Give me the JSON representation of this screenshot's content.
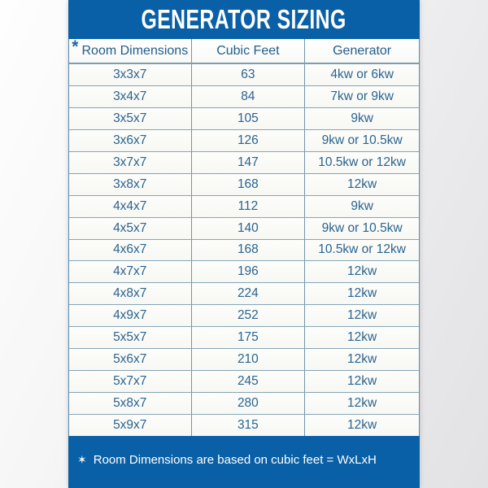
{
  "title": "GENERATOR SIZING",
  "table": {
    "header": {
      "asterisk": "*",
      "columns": [
        "Room Dimensions",
        "Cubic Feet",
        "Generator"
      ]
    },
    "rows": [
      [
        "3x3x7",
        "63",
        "4kw or 6kw"
      ],
      [
        "3x4x7",
        "84",
        "7kw or 9kw"
      ],
      [
        "3x5x7",
        "105",
        "9kw"
      ],
      [
        "3x6x7",
        "126",
        "9kw or 10.5kw"
      ],
      [
        "3x7x7",
        "147",
        "10.5kw or 12kw"
      ],
      [
        "3x8x7",
        "168",
        "12kw"
      ],
      [
        "4x4x7",
        "112",
        "9kw"
      ],
      [
        "4x5x7",
        "140",
        "9kw or 10.5kw"
      ],
      [
        "4x6x7",
        "168",
        "10.5kw or 12kw"
      ],
      [
        "4x7x7",
        "196",
        "12kw"
      ],
      [
        "4x8x7",
        "224",
        "12kw"
      ],
      [
        "4x9x7",
        "252",
        "12kw"
      ],
      [
        "5x5x7",
        "175",
        "12kw"
      ],
      [
        "5x6x7",
        "210",
        "12kw"
      ],
      [
        "5x7x7",
        "245",
        "12kw"
      ],
      [
        "5x8x7",
        "280",
        "12kw"
      ],
      [
        "5x9x7",
        "315",
        "12kw"
      ]
    ]
  },
  "footnote": {
    "star": "✶",
    "text": "Room Dimensions are based on cubic feet = WxLxH"
  },
  "colors": {
    "panel_blue": "#0a60a6",
    "cell_text": "#2a6490",
    "grid_line": "#86a5b6",
    "title_text": "#ffffff"
  }
}
